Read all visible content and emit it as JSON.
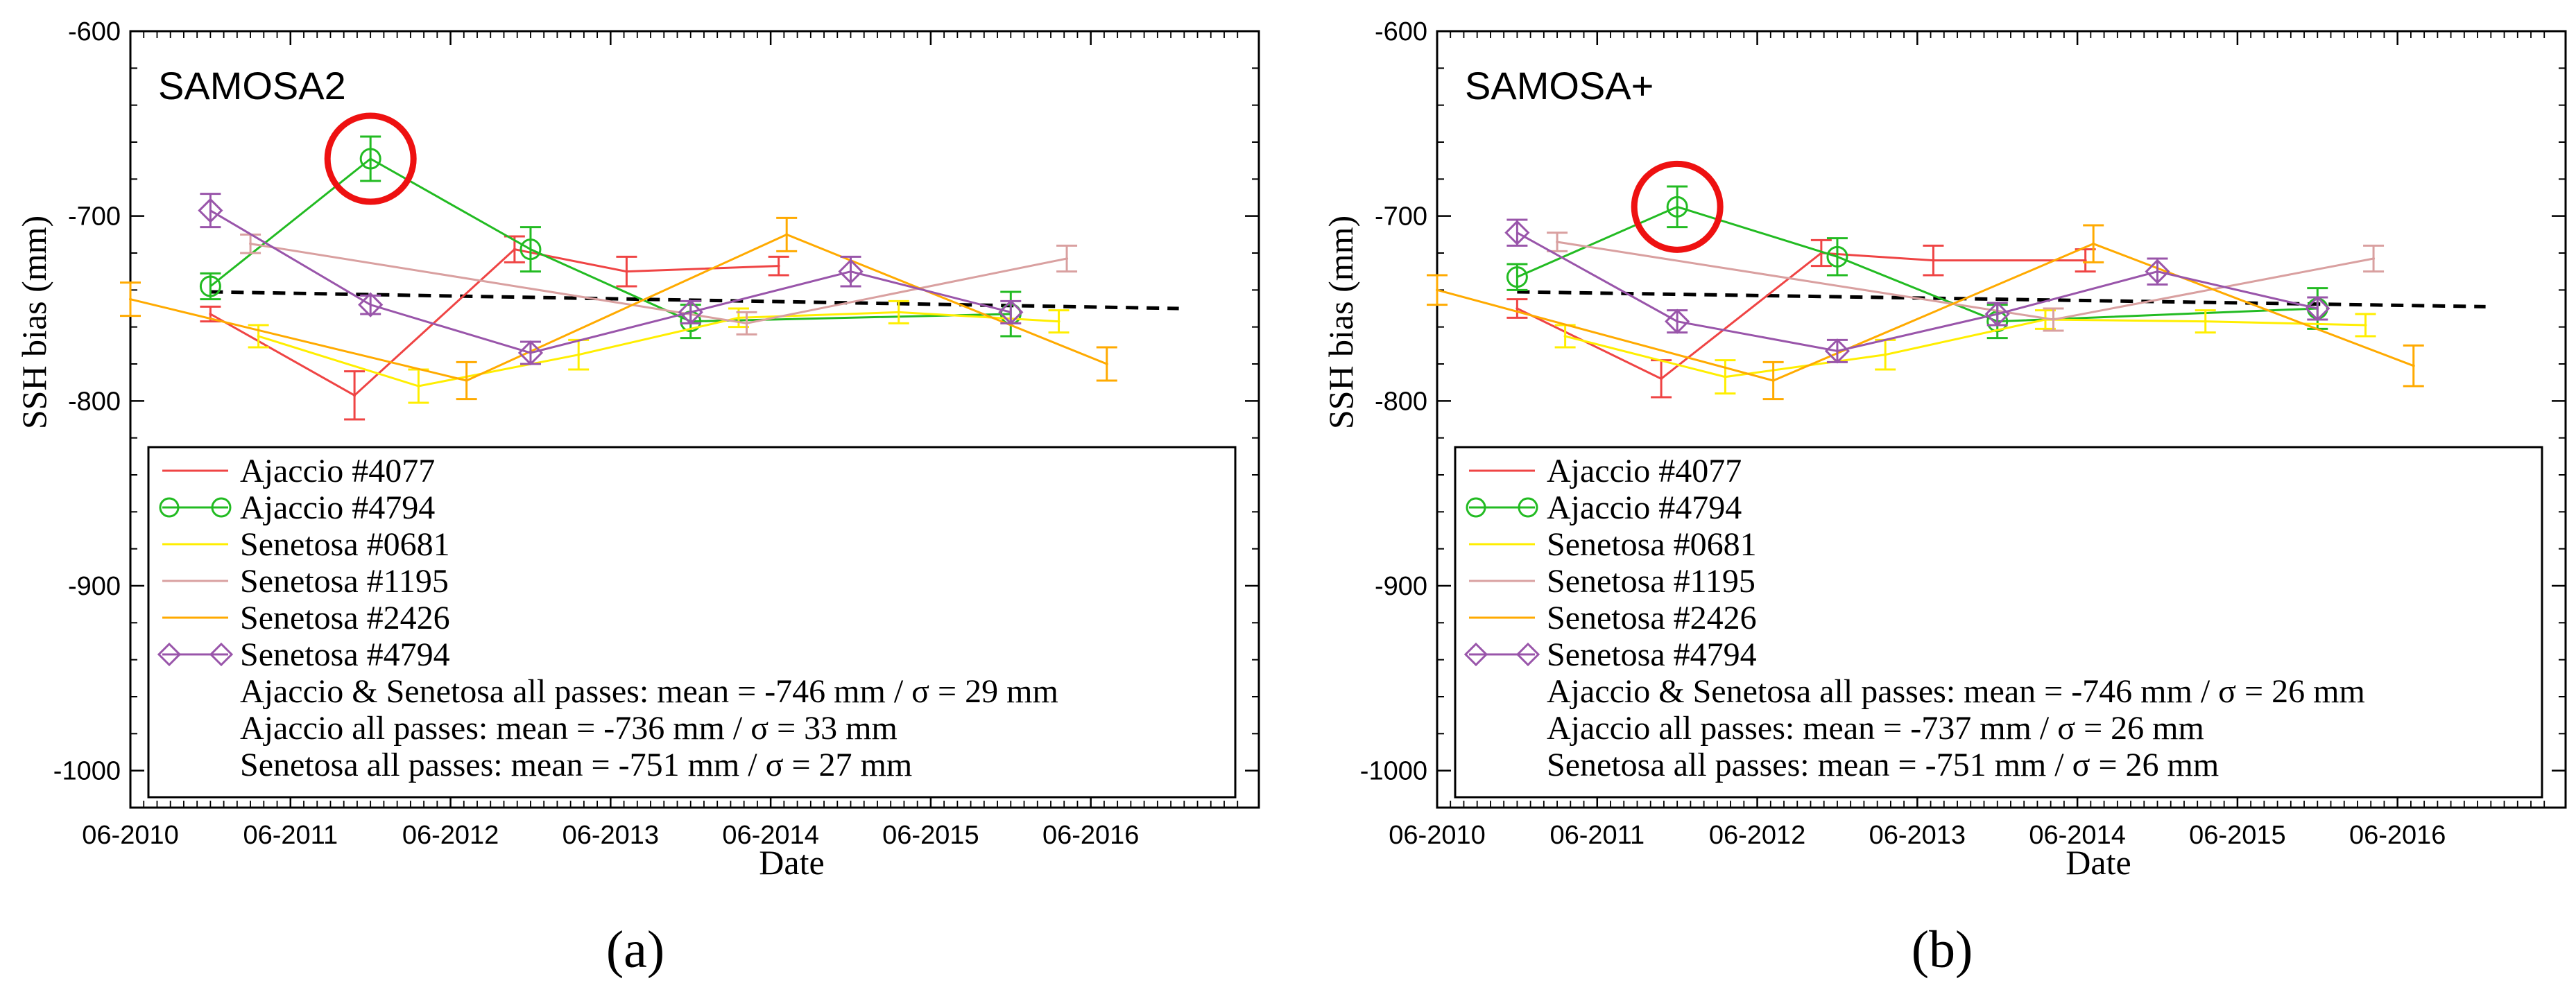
{
  "figure": {
    "panels": [
      {
        "id": "a",
        "sub_label": "(a)",
        "title": "SAMOSA2",
        "xlabel": "Date",
        "ylabel": "SSH bias (mm)",
        "legend": {
          "entries": [
            {
              "label": "Ajaccio #4077",
              "color": "#ef4444",
              "marker": "none"
            },
            {
              "label": "Ajaccio #4794",
              "color": "#22bb22",
              "marker": "circle"
            },
            {
              "label": "Senetosa #0681",
              "color": "#ffee00",
              "marker": "none"
            },
            {
              "label": "Senetosa #1195",
              "color": "#d9a0a0",
              "marker": "none"
            },
            {
              "label": "Senetosa #2426",
              "color": "#ffaa00",
              "marker": "none"
            },
            {
              "label": "Senetosa  #4794",
              "color": "#9955aa",
              "marker": "diamond"
            }
          ],
          "stats": [
            "Ajaccio & Senetosa all passes: mean = -746 mm / σ = 29 mm",
            "Ajaccio all passes: mean = -736 mm / σ = 33 mm",
            "Senetosa all passes: mean = -751 mm / σ = 27 mm"
          ]
        }
      },
      {
        "id": "b",
        "sub_label": "(b)",
        "title": "SAMOSA+",
        "xlabel": "Date",
        "ylabel": "SSH bias (mm)",
        "legend": {
          "entries": [
            {
              "label": "Ajaccio #4077",
              "color": "#ef4444",
              "marker": "none"
            },
            {
              "label": "Ajaccio #4794",
              "color": "#22bb22",
              "marker": "circle"
            },
            {
              "label": "Senetosa #0681",
              "color": "#ffee00",
              "marker": "none"
            },
            {
              "label": "Senetosa #1195",
              "color": "#d9a0a0",
              "marker": "none"
            },
            {
              "label": "Senetosa #2426",
              "color": "#ffaa00",
              "marker": "none"
            },
            {
              "label": "Senetosa  #4794",
              "color": "#9955aa",
              "marker": "diamond"
            }
          ],
          "stats": [
            "Ajaccio & Senetosa all passes: mean = -746 mm / σ = 26 mm",
            "Ajaccio all passes: mean = -737 mm / σ = 26 mm",
            "Senetosa all passes: mean = -751 mm / σ = 26 mm"
          ]
        }
      }
    ]
  },
  "chart_data": [
    {
      "type": "line",
      "title": "SAMOSA2",
      "xlabel": "Date",
      "ylabel": "SSH bias (mm)",
      "x_tick_labels": [
        "06-2010",
        "06-2011",
        "06-2012",
        "06-2013",
        "06-2014",
        "06-2015",
        "06-2016"
      ],
      "xlim": [
        2010.45,
        2017.5
      ],
      "ylim": [
        -1020,
        -600
      ],
      "y_ticks": [
        -1000,
        -900,
        -800,
        -700,
        -600
      ],
      "grid": false,
      "highlight": {
        "x": 2011.95,
        "y": -669,
        "color": "#ee1111"
      },
      "trend": {
        "color": "#000000",
        "dashed": true,
        "x": [
          2010.95,
          2017.0
        ],
        "y": [
          -741,
          -750
        ]
      },
      "series": [
        {
          "name": "Ajaccio #4077",
          "color": "#ef4444",
          "marker": "none",
          "x": [
            2010.95,
            2011.85,
            2012.85,
            2013.55,
            2014.5
          ],
          "y": [
            -753,
            -797,
            -718,
            -730,
            -727
          ],
          "err": [
            4,
            13,
            7,
            8,
            5
          ]
        },
        {
          "name": "Ajaccio #4794",
          "color": "#22bb22",
          "marker": "circle",
          "x": [
            2010.95,
            2011.95,
            2012.95,
            2013.95,
            2015.95
          ],
          "y": [
            -738,
            -669,
            -718,
            -757,
            -753
          ],
          "err": [
            7,
            12,
            12,
            9,
            12
          ]
        },
        {
          "name": "Senetosa #0681",
          "color": "#ffee00",
          "marker": "none",
          "x": [
            2011.25,
            2012.25,
            2013.25,
            2014.25,
            2015.25,
            2016.25
          ],
          "y": [
            -765,
            -792,
            -775,
            -755,
            -752,
            -757
          ],
          "err": [
            6,
            9,
            8,
            5,
            6,
            6
          ]
        },
        {
          "name": "Senetosa #1195",
          "color": "#d9a0a0",
          "marker": "none",
          "x": [
            2011.2,
            2014.3,
            2016.3
          ],
          "y": [
            -715,
            -758,
            -723
          ],
          "err": [
            5,
            6,
            7
          ]
        },
        {
          "name": "Senetosa #2426",
          "color": "#ffaa00",
          "marker": "none",
          "x": [
            2010.45,
            2012.55,
            2014.55,
            2016.55
          ],
          "y": [
            -745,
            -789,
            -710,
            -780
          ],
          "err": [
            9,
            10,
            9,
            9
          ]
        },
        {
          "name": "Senetosa  #4794",
          "color": "#9955aa",
          "marker": "diamond",
          "x": [
            2010.95,
            2011.95,
            2012.95,
            2013.95,
            2014.95,
            2015.95
          ],
          "y": [
            -697,
            -748,
            -774,
            -752,
            -730,
            -752
          ],
          "err": [
            9,
            5,
            6,
            6,
            8,
            6
          ]
        }
      ]
    },
    {
      "type": "line",
      "title": "SAMOSA+",
      "xlabel": "Date",
      "ylabel": "SSH bias (mm)",
      "x_tick_labels": [
        "06-2010",
        "06-2011",
        "06-2012",
        "06-2013",
        "06-2014",
        "06-2015",
        "06-2016"
      ],
      "xlim": [
        2010.45,
        2017.5
      ],
      "ylim": [
        -1020,
        -600
      ],
      "y_ticks": [
        -1000,
        -900,
        -800,
        -700,
        -600
      ],
      "grid": false,
      "highlight": {
        "x": 2011.95,
        "y": -695,
        "color": "#ee1111"
      },
      "trend": {
        "color": "#000000",
        "dashed": true,
        "x": [
          2010.95,
          2017.0
        ],
        "y": [
          -741,
          -749
        ]
      },
      "series": [
        {
          "name": "Ajaccio #4077",
          "color": "#ef4444",
          "marker": "none",
          "x": [
            2010.95,
            2011.85,
            2012.85,
            2013.55,
            2014.5
          ],
          "y": [
            -750,
            -788,
            -720,
            -724,
            -724
          ],
          "err": [
            5,
            10,
            7,
            8,
            6
          ]
        },
        {
          "name": "Ajaccio #4794",
          "color": "#22bb22",
          "marker": "circle",
          "x": [
            2010.95,
            2011.95,
            2012.95,
            2013.95,
            2015.95
          ],
          "y": [
            -733,
            -695,
            -722,
            -757,
            -750
          ],
          "err": [
            7,
            11,
            10,
            9,
            11
          ]
        },
        {
          "name": "Senetosa #0681",
          "color": "#ffee00",
          "marker": "none",
          "x": [
            2011.25,
            2012.25,
            2013.25,
            2014.25,
            2015.25,
            2016.25
          ],
          "y": [
            -765,
            -787,
            -775,
            -756,
            -757,
            -759
          ],
          "err": [
            6,
            9,
            8,
            5,
            6,
            6
          ]
        },
        {
          "name": "Senetosa #1195",
          "color": "#d9a0a0",
          "marker": "none",
          "x": [
            2011.2,
            2014.3,
            2016.3
          ],
          "y": [
            -714,
            -756,
            -723
          ],
          "err": [
            5,
            6,
            7
          ]
        },
        {
          "name": "Senetosa #2426",
          "color": "#ffaa00",
          "marker": "none",
          "x": [
            2010.45,
            2012.55,
            2014.55,
            2016.55
          ],
          "y": [
            -740,
            -789,
            -715,
            -781
          ],
          "err": [
            8,
            10,
            10,
            11
          ]
        },
        {
          "name": "Senetosa  #4794",
          "color": "#9955aa",
          "marker": "diamond",
          "x": [
            2010.95,
            2011.95,
            2012.95,
            2013.95,
            2014.95,
            2015.95
          ],
          "y": [
            -709,
            -757,
            -773,
            -753,
            -730,
            -750
          ],
          "err": [
            7,
            6,
            6,
            6,
            7,
            6
          ]
        }
      ]
    }
  ]
}
